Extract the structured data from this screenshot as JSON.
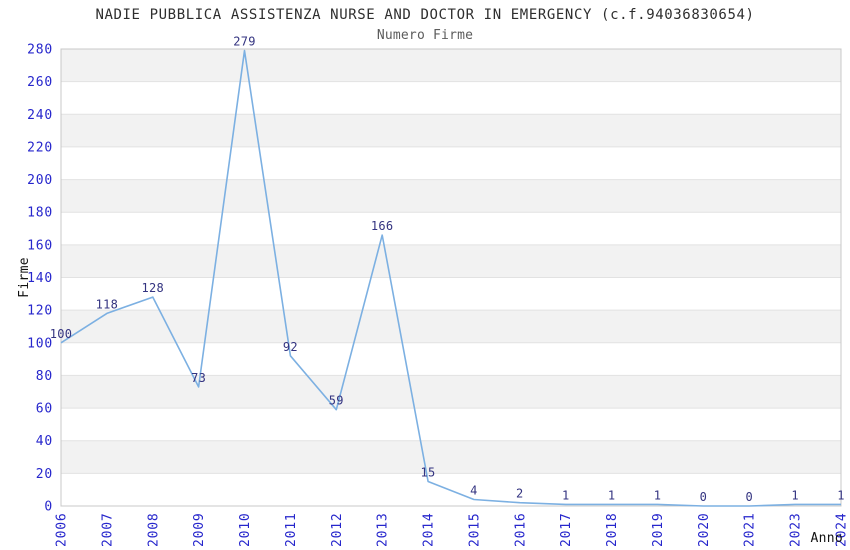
{
  "title": "NADIE PUBBLICA ASSISTENZA NURSE AND DOCTOR IN EMERGENCY (c.f.94036830654)",
  "subtitle": "Numero Firme",
  "chart_data": {
    "type": "line",
    "title": "NADIE PUBBLICA ASSISTENZA NURSE AND DOCTOR IN EMERGENCY (c.f.94036830654)",
    "subtitle": "Numero Firme",
    "xlabel": "Anno",
    "ylabel": "Firme",
    "categories": [
      "2006",
      "2007",
      "2008",
      "2009",
      "2010",
      "2011",
      "2012",
      "2013",
      "2014",
      "2015",
      "2016",
      "2017",
      "2018",
      "2019",
      "2020",
      "2021",
      "2023",
      "2024"
    ],
    "values": [
      100,
      118,
      128,
      73,
      279,
      92,
      59,
      166,
      15,
      4,
      2,
      1,
      1,
      1,
      0,
      0,
      1,
      1
    ],
    "ylim": [
      0,
      280
    ],
    "ytick_step": 20,
    "yticks": [
      0,
      20,
      40,
      60,
      80,
      100,
      120,
      140,
      160,
      180,
      200,
      220,
      240,
      260,
      280
    ],
    "grid": true,
    "banding": "alternating horizontal 20-unit bands, gray on odd bands",
    "legend": "none",
    "colors": {
      "line": "#7cb0e2",
      "tick_label": "#2626cc",
      "data_label": "#333380",
      "band_gray": "#f2f2f2",
      "band_white": "#ffffff",
      "grid_line": "#e2e2e2",
      "plot_border": "#c8c8c8",
      "title": "#2e2e2e",
      "subtitle": "#5c5c5c",
      "axis_name": "#111111"
    }
  }
}
